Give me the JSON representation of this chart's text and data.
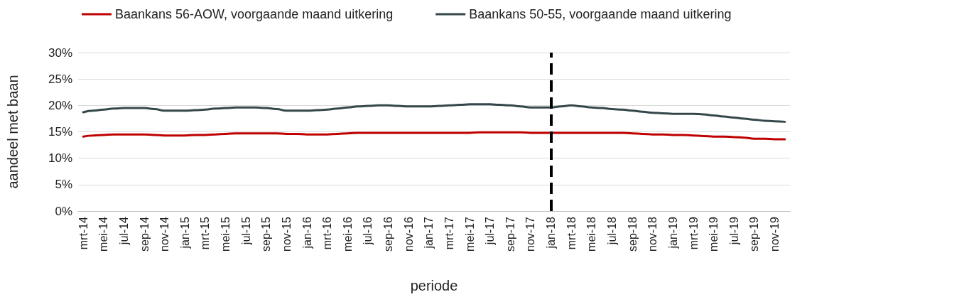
{
  "chart_data": {
    "type": "line",
    "xlabel": "periode",
    "ylabel": "aandeel met baan",
    "categories": [
      "mrt-14",
      null,
      "mei-14",
      null,
      "jul-14",
      null,
      "sep-14",
      null,
      "nov-14",
      null,
      "jan-15",
      null,
      "mrt-15",
      null,
      "mei-15",
      null,
      "jul-15",
      null,
      "sep-15",
      null,
      "nov-15",
      null,
      "jan-16",
      null,
      "mrt-16",
      null,
      "mei-16",
      null,
      "jul-16",
      null,
      "sep-16",
      null,
      "nov-16",
      null,
      "jan-17",
      null,
      "mrt-17",
      null,
      "mei-17",
      null,
      "jul-17",
      null,
      "sep-17",
      null,
      "nov-17",
      null,
      "jan-18",
      null,
      "mrt-18",
      null,
      "mei-18",
      null,
      "jul-18",
      null,
      "sep-18",
      null,
      "nov-18",
      null,
      "jan-19",
      null,
      "mrt-19",
      null,
      "mei-19",
      null,
      "jul-19",
      null,
      "sep-19",
      null,
      "nov-19",
      null
    ],
    "series": [
      {
        "name": "Baankans 56-AOW, voorgaande maand uitkering",
        "color": "#c00000",
        "values": [
          14.1,
          14.3,
          14.4,
          14.5,
          14.5,
          14.5,
          14.5,
          14.4,
          14.3,
          14.3,
          14.3,
          14.4,
          14.4,
          14.5,
          14.6,
          14.7,
          14.7,
          14.7,
          14.7,
          14.7,
          14.6,
          14.6,
          14.5,
          14.5,
          14.5,
          14.6,
          14.7,
          14.8,
          14.8,
          14.8,
          14.8,
          14.8,
          14.8,
          14.8,
          14.8,
          14.8,
          14.8,
          14.8,
          14.8,
          14.9,
          14.9,
          14.9,
          14.9,
          14.9,
          14.8,
          14.8,
          14.8,
          14.8,
          14.8,
          14.8,
          14.8,
          14.8,
          14.8,
          14.8,
          14.7,
          14.6,
          14.5,
          14.5,
          14.4,
          14.4,
          14.3,
          14.2,
          14.1,
          14.1,
          14.0,
          13.9,
          13.7,
          13.7,
          13.6,
          13.6
        ]
      },
      {
        "name": "Baankans 50-55, voorgaande maand uitkering",
        "color": "#34474a",
        "values": [
          18.7,
          19.0,
          19.2,
          19.4,
          19.5,
          19.5,
          19.5,
          19.3,
          19.0,
          19.0,
          19.0,
          19.1,
          19.2,
          19.4,
          19.5,
          19.6,
          19.6,
          19.6,
          19.5,
          19.3,
          19.0,
          19.0,
          19.0,
          19.1,
          19.2,
          19.4,
          19.6,
          19.8,
          19.9,
          20.0,
          20.0,
          19.9,
          19.8,
          19.8,
          19.8,
          19.9,
          20.0,
          20.1,
          20.2,
          20.2,
          20.2,
          20.1,
          20.0,
          19.8,
          19.6,
          19.6,
          19.6,
          19.8,
          20.0,
          19.8,
          19.6,
          19.5,
          19.3,
          19.2,
          19.0,
          18.8,
          18.6,
          18.5,
          18.4,
          18.4,
          18.4,
          18.3,
          18.1,
          17.9,
          17.7,
          17.5,
          17.3,
          17.1,
          17.0,
          16.9
        ]
      }
    ],
    "ylim": [
      0,
      30
    ],
    "yticks": [
      {
        "value": 0,
        "label": "0%"
      },
      {
        "value": 5,
        "label": "5%"
      },
      {
        "value": 10,
        "label": "10%"
      },
      {
        "value": 15,
        "label": "15%"
      },
      {
        "value": 20,
        "label": "20%"
      },
      {
        "value": 25,
        "label": "25%"
      },
      {
        "value": 30,
        "label": "30%"
      }
    ],
    "ref_lines": [
      {
        "axis": "x",
        "value": "jan-18",
        "color": "#000000",
        "line_style": "dashed"
      }
    ],
    "grid": "y",
    "legend": "top left",
    "marker": "none",
    "line_style": "solid"
  }
}
